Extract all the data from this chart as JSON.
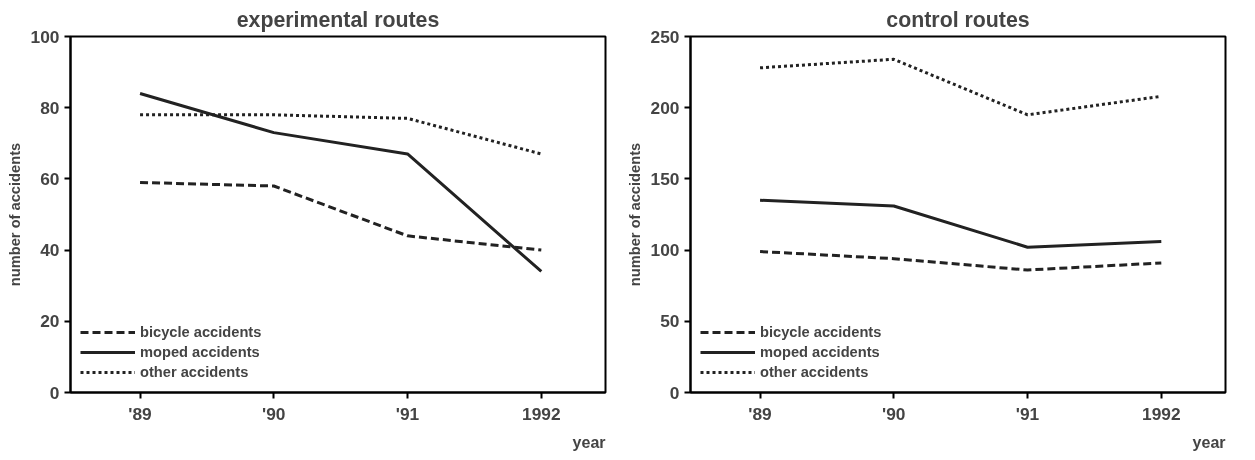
{
  "chart_data": [
    {
      "type": "line",
      "title": "experimental routes",
      "xlabel": "year",
      "ylabel": "number of accidents",
      "categories": [
        "'89",
        "'90",
        "'91",
        "1992"
      ],
      "ylim": [
        0,
        100
      ],
      "yticks": [
        0,
        20,
        40,
        60,
        80,
        100
      ],
      "legend": "bottom left",
      "grid": false,
      "series": [
        {
          "name": "bicycle accidents",
          "color": "#222222",
          "line_style": "dashed",
          "values": [
            59,
            58,
            44,
            40
          ]
        },
        {
          "name": "moped accidents",
          "color": "#222222",
          "line_style": "solid",
          "values": [
            84,
            73,
            67,
            34
          ]
        },
        {
          "name": "other accidents",
          "color": "#222222",
          "line_style": "dotted",
          "values": [
            78,
            78,
            77,
            67
          ]
        }
      ]
    },
    {
      "type": "line",
      "title": "control routes",
      "xlabel": "year",
      "ylabel": "number of accidents",
      "categories": [
        "'89",
        "'90",
        "'91",
        "1992"
      ],
      "ylim": [
        0,
        250
      ],
      "yticks": [
        0,
        50,
        100,
        150,
        200,
        250
      ],
      "legend": "bottom left",
      "grid": false,
      "series": [
        {
          "name": "bicycle accidents",
          "color": "#222222",
          "line_style": "dashed",
          "values": [
            99,
            94,
            86,
            91
          ]
        },
        {
          "name": "moped accidents",
          "color": "#222222",
          "line_style": "solid",
          "values": [
            135,
            131,
            102,
            106
          ]
        },
        {
          "name": "other accidents",
          "color": "#222222",
          "line_style": "dotted",
          "values": [
            228,
            234,
            195,
            208
          ]
        }
      ]
    }
  ]
}
